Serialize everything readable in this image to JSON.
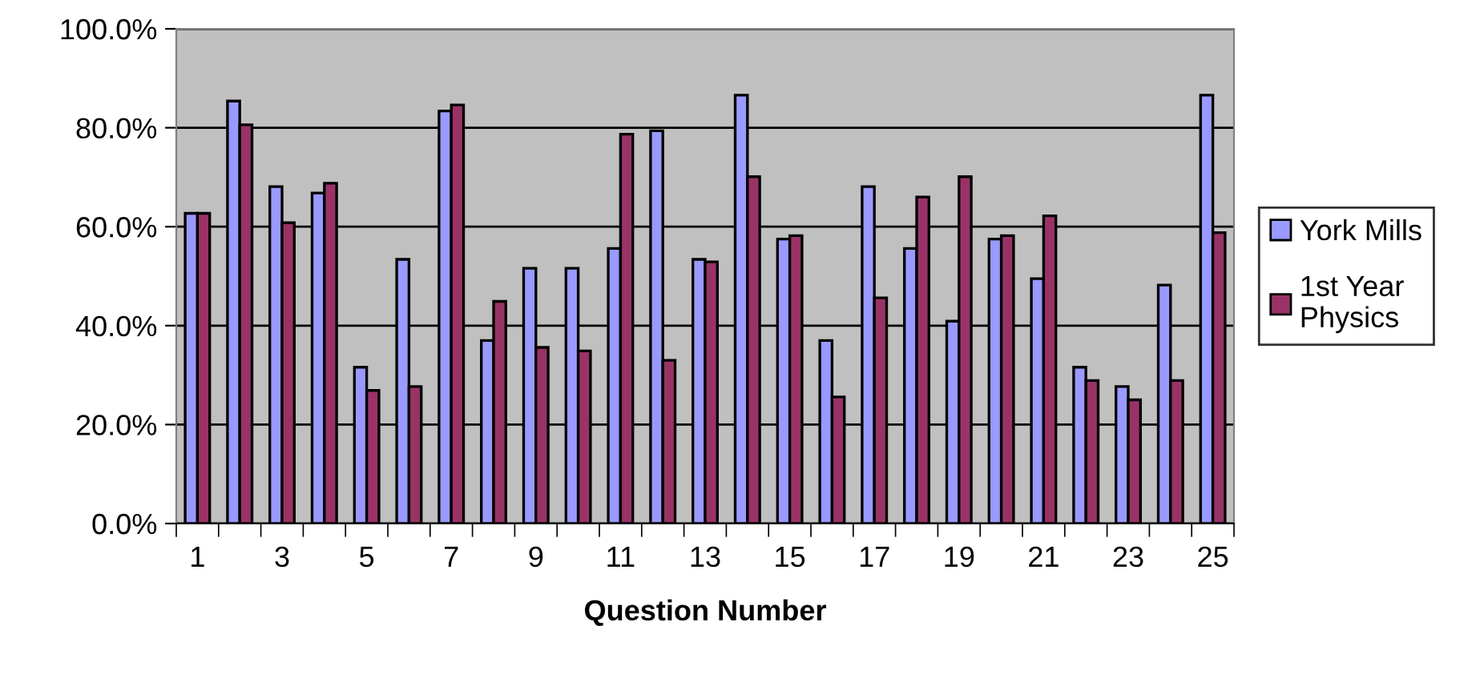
{
  "chart_data": {
    "type": "bar",
    "xlabel": "Question Number",
    "categories": [
      "1",
      null,
      "3",
      null,
      "5",
      null,
      "7",
      null,
      "9",
      null,
      "11",
      null,
      "13",
      null,
      "15",
      null,
      "17",
      null,
      "19",
      null,
      "21",
      null,
      "23",
      null,
      "25"
    ],
    "series": [
      {
        "name": "York Mills",
        "color": "#9999ff",
        "values": [
          62.7,
          85.4,
          68.1,
          66.8,
          31.6,
          53.4,
          83.4,
          37.0,
          51.6,
          51.6,
          55.6,
          79.4,
          53.4,
          86.6,
          57.5,
          37.0,
          68.1,
          55.6,
          40.9,
          57.5,
          49.5,
          31.6,
          27.7,
          48.2,
          86.6
        ]
      },
      {
        "name": "1st Year\nPhysics",
        "color": "#993366",
        "values": [
          62.7,
          80.6,
          60.8,
          68.8,
          26.9,
          27.7,
          84.6,
          44.9,
          35.6,
          34.9,
          78.7,
          33.0,
          52.9,
          70.1,
          58.2,
          25.6,
          45.6,
          66.0,
          70.1,
          58.2,
          62.2,
          28.9,
          25.0,
          28.9,
          58.8
        ]
      }
    ],
    "ylim": [
      0,
      100
    ],
    "yticks": [
      {
        "value": 0,
        "label": "0.0%"
      },
      {
        "value": 20,
        "label": "20.0%"
      },
      {
        "value": 40,
        "label": "40.0%"
      },
      {
        "value": 60,
        "label": "60.0%"
      },
      {
        "value": 80,
        "label": "80.0%"
      },
      {
        "value": 100,
        "label": "100.0%"
      }
    ],
    "grid": "y",
    "legend": "right"
  }
}
